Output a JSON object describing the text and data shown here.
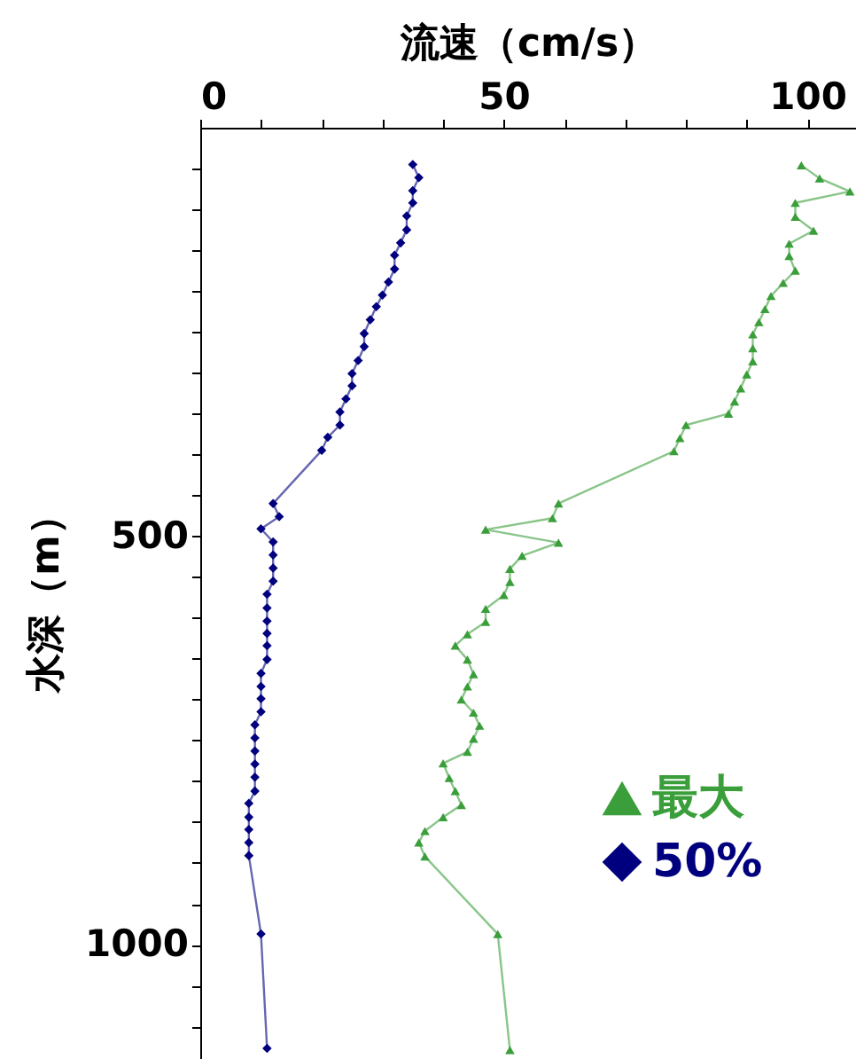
{
  "chart_data": {
    "type": "line",
    "orientation": "horizontal",
    "xlabel": "流速（cm/s）",
    "ylabel": "水深（m）",
    "xlim": [
      0,
      108
    ],
    "ylim": [
      1140,
      0
    ],
    "xticks": [
      0,
      {
        "value": 10,
        "label": null
      },
      {
        "value": 20,
        "label": null
      },
      {
        "value": 30,
        "label": null
      },
      {
        "value": 40,
        "label": null
      },
      50,
      {
        "value": 60,
        "label": null
      },
      {
        "value": 70,
        "label": null
      },
      {
        "value": 80,
        "label": null
      },
      {
        "value": 90,
        "label": null
      },
      100
    ],
    "yticks": [
      {
        "value": 50,
        "label": null
      },
      {
        "value": 100,
        "label": null
      },
      {
        "value": 150,
        "label": null
      },
      {
        "value": 200,
        "label": null
      },
      {
        "value": 250,
        "label": null
      },
      {
        "value": 300,
        "label": null
      },
      {
        "value": 350,
        "label": null
      },
      {
        "value": 400,
        "label": null
      },
      {
        "value": 450,
        "label": null
      },
      500,
      {
        "value": 550,
        "label": null
      },
      {
        "value": 600,
        "label": null
      },
      {
        "value": 650,
        "label": null
      },
      {
        "value": 700,
        "label": null
      },
      {
        "value": 750,
        "label": null
      },
      {
        "value": 800,
        "label": null
      },
      {
        "value": 850,
        "label": null
      },
      {
        "value": 900,
        "label": null
      },
      {
        "value": 950,
        "label": null
      },
      1000,
      {
        "value": 1050,
        "label": null
      },
      {
        "value": 1100,
        "label": null
      }
    ],
    "legend": "bottom right",
    "series": [
      {
        "name": "最大",
        "color": "#3a9e3a",
        "marker": "triangle",
        "values": [
          99,
          102,
          107,
          98,
          98,
          101,
          97,
          97,
          98,
          96,
          94,
          93,
          92,
          91,
          91,
          91,
          90,
          89,
          88,
          87,
          80,
          79,
          78,
          59,
          58,
          47,
          59,
          53,
          51,
          51,
          50,
          47,
          47,
          44,
          42,
          44,
          45,
          44,
          43,
          45,
          46,
          45,
          44,
          40,
          41,
          42,
          43,
          40,
          37,
          36,
          37,
          49,
          51
        ],
        "x": [
          46,
          62,
          78,
          92,
          109,
          126,
          142,
          157,
          175,
          190,
          206,
          222,
          238,
          253,
          270,
          286,
          302,
          319,
          335,
          350,
          364,
          380,
          396,
          460,
          478,
          492,
          508,
          524,
          540,
          556,
          572,
          589,
          605,
          620,
          634,
          651,
          669,
          684,
          700,
          716,
          732,
          748,
          764,
          778,
          796,
          812,
          829,
          844,
          861,
          875,
          892,
          987,
          1129
        ]
      },
      {
        "name": "50%",
        "color": "#00007f",
        "marker": "diamond",
        "values": [
          35,
          36,
          35,
          35,
          34,
          34,
          33,
          32,
          32,
          31,
          30,
          29,
          28,
          27,
          27,
          26,
          25,
          25,
          24,
          23,
          23,
          21,
          20,
          12,
          13,
          10,
          12,
          12,
          12,
          12,
          11,
          11,
          11,
          11,
          11,
          11,
          10,
          10,
          10,
          10,
          9,
          9,
          9,
          9,
          9,
          9,
          8,
          8,
          8,
          8,
          8,
          10,
          11
        ],
        "x": [
          45,
          61,
          77,
          92,
          108,
          125,
          141,
          156,
          173,
          189,
          205,
          219,
          235,
          252,
          268,
          285,
          301,
          316,
          332,
          348,
          364,
          379,
          395,
          460,
          476,
          491,
          507,
          523,
          539,
          555,
          571,
          588,
          604,
          619,
          634,
          651,
          668,
          684,
          699,
          715,
          731,
          747,
          763,
          779,
          795,
          812,
          827,
          844,
          859,
          875,
          891,
          987,
          1127
        ]
      }
    ]
  }
}
